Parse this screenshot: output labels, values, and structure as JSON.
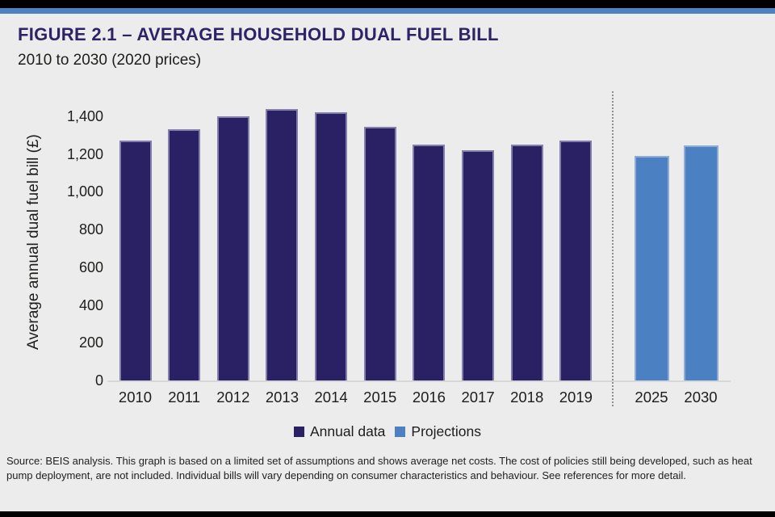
{
  "header": {
    "figure_title": "FIGURE 2.1 – AVERAGE HOUSEHOLD DUAL FUEL BILL",
    "subtitle": "2010 to 2030 (2020 prices)"
  },
  "colors": {
    "annual_bar": "#2a2164",
    "projection_bar": "#4b81c3",
    "accent_strip_blue": "#4d81c3",
    "strip_black": "#000000",
    "background": "#ececec",
    "title_text": "#2d2366",
    "axis_line": "#d7d7d7",
    "separator_dots": "#8f8f8f",
    "body_text": "#1d1d1b"
  },
  "chart_data": {
    "type": "bar",
    "title": "FIGURE 2.1 – AVERAGE HOUSEHOLD DUAL FUEL BILL",
    "subtitle": "2010 to 2030 (2020 prices)",
    "xlabel": "",
    "ylabel": "Average annual dual fuel bill (£)",
    "ylim": [
      0,
      1400
    ],
    "ytick_interval": 200,
    "ytick_labels": [
      "0",
      "200",
      "400",
      "600",
      "800",
      "1,000",
      "1,200",
      "1,400"
    ],
    "grid": false,
    "legend_position": "bottom-center",
    "separator": "dotted vertical line between 2019 and 2025",
    "categories": [
      "2010",
      "2011",
      "2012",
      "2013",
      "2014",
      "2015",
      "2016",
      "2017",
      "2018",
      "2019",
      "2025",
      "2030"
    ],
    "series": [
      {
        "name": "Annual data",
        "color": "#2a2164",
        "categories": [
          "2010",
          "2011",
          "2012",
          "2013",
          "2014",
          "2015",
          "2016",
          "2017",
          "2018",
          "2019"
        ],
        "values": [
          1270,
          1330,
          1400,
          1440,
          1420,
          1345,
          1250,
          1220,
          1250,
          1270
        ]
      },
      {
        "name": "Projections",
        "color": "#4b81c3",
        "categories": [
          "2025",
          "2030"
        ],
        "values": [
          1190,
          1245
        ]
      }
    ]
  },
  "legend": {
    "items": [
      {
        "label": "Annual data",
        "color": "#2a2164"
      },
      {
        "label": "Projections",
        "color": "#4b81c3"
      }
    ]
  },
  "footer": {
    "source": "Source: BEIS analysis. This graph is based on a limited set of assumptions and shows average net costs. The cost of policies still being developed, such as heat pump deployment, are not included. Individual bills will vary depending on consumer characteristics and behaviour. See references for more detail."
  }
}
